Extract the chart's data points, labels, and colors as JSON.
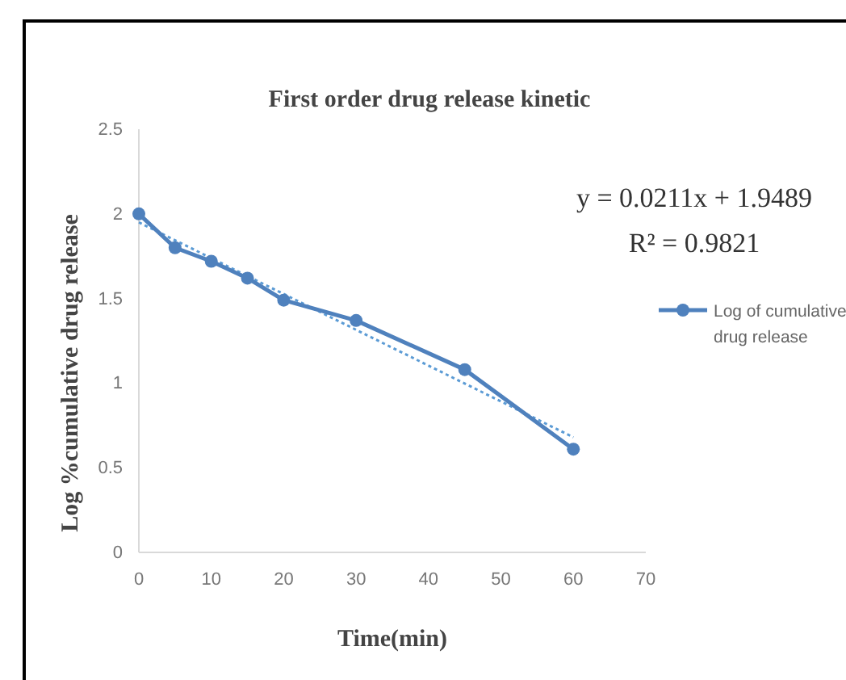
{
  "chart_data": {
    "type": "line",
    "title": "First order drug release kinetic",
    "xlabel": "Time(min)",
    "ylabel": "Log %cumulative drug release",
    "x": [
      0,
      5,
      10,
      15,
      20,
      30,
      45,
      60
    ],
    "series": [
      {
        "name": "Log of cumulative drug release",
        "color": "#4f81bd",
        "values": [
          2.0,
          1.8,
          1.72,
          1.62,
          1.49,
          1.37,
          1.08,
          0.61
        ],
        "marker": "circle",
        "line_style": "solid"
      },
      {
        "type": "line",
        "x": [
          0,
          60
        ],
        "color": "#5b9bd5",
        "values": [
          1.95,
          0.68
        ],
        "marker": "none",
        "line_style": "dotted"
      }
    ],
    "annotations": [
      "y = 0.0211x + 1.9489",
      "R² = 0.9821"
    ],
    "xlim": [
      0,
      70
    ],
    "xticks": [
      0,
      10,
      20,
      30,
      40,
      50,
      60,
      70
    ],
    "ylim": [
      0,
      2.5
    ],
    "yticks": [
      0,
      0.5,
      1,
      1.5,
      2,
      2.5
    ],
    "grid": false,
    "legend": "right"
  }
}
